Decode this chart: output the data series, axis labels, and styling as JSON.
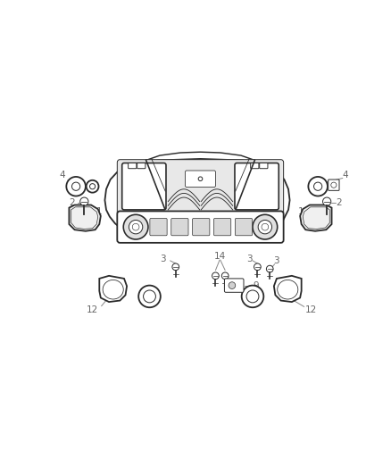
{
  "bg_color": "#ffffff",
  "line_color": "#2a2a2a",
  "label_color": "#666666",
  "lead_color": "#888888",
  "figsize": [
    4.38,
    5.33
  ],
  "dpi": 100,
  "lw_main": 1.3,
  "lw_thin": 0.7,
  "label_fs": 7.5
}
